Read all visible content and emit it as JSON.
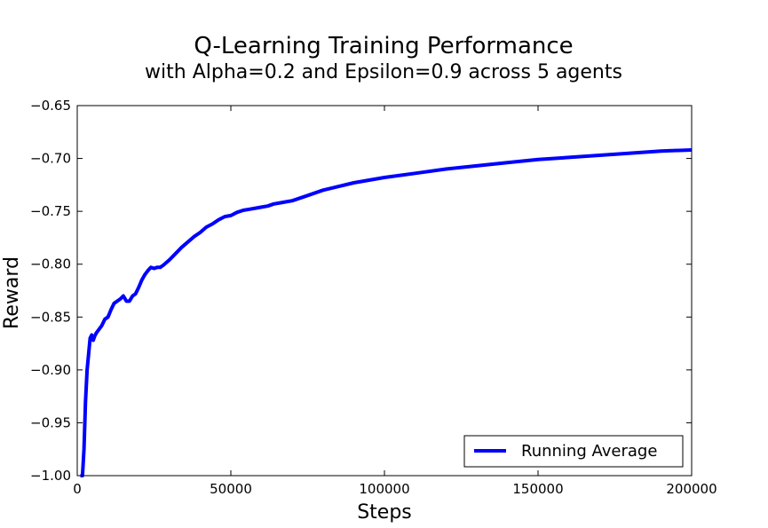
{
  "chart_data": {
    "type": "line",
    "title": "Q-Learning Training Performance",
    "subtitle": "with Alpha=0.2 and Epsilon=0.9 across 5 agents",
    "xlabel": "Steps",
    "ylabel": "Reward",
    "xlim": [
      0,
      200000
    ],
    "ylim": [
      -1.0,
      -0.65
    ],
    "x_ticks": [
      0,
      50000,
      100000,
      150000,
      200000
    ],
    "x_tick_labels": [
      "0",
      "50000",
      "100000",
      "150000",
      "200000"
    ],
    "y_ticks": [
      -1.0,
      -0.95,
      -0.9,
      -0.85,
      -0.8,
      -0.75,
      -0.7,
      -0.65
    ],
    "y_tick_labels": [
      "−1.00",
      "−0.95",
      "−0.90",
      "−0.85",
      "−0.80",
      "−0.75",
      "−0.70",
      "−0.65"
    ],
    "grid": false,
    "legend_position": "lower-right",
    "series": [
      {
        "name": "Running Average",
        "color": "#0000ff",
        "x": [
          1000,
          1700,
          2200,
          2700,
          3200,
          3700,
          4200,
          4700,
          5200,
          5700,
          6200,
          7000,
          8000,
          9000,
          10000,
          11000,
          12000,
          13000,
          14000,
          15000,
          16000,
          17000,
          18000,
          19000,
          20000,
          21000,
          22000,
          23000,
          24000,
          25000,
          26000,
          27000,
          28000,
          30000,
          32000,
          34000,
          36000,
          38000,
          40000,
          42000,
          44000,
          46000,
          48000,
          50000,
          52000,
          54000,
          56000,
          58000,
          60000,
          62000,
          64000,
          66000,
          68000,
          70000,
          75000,
          80000,
          90000,
          100000,
          110000,
          120000,
          130000,
          140000,
          150000,
          160000,
          170000,
          180000,
          190000,
          200000
        ],
        "values": [
          -1.0,
          -1.0,
          -0.975,
          -0.93,
          -0.9,
          -0.885,
          -0.87,
          -0.867,
          -0.872,
          -0.868,
          -0.865,
          -0.862,
          -0.858,
          -0.852,
          -0.85,
          -0.843,
          -0.837,
          -0.835,
          -0.833,
          -0.83,
          -0.835,
          -0.835,
          -0.83,
          -0.828,
          -0.822,
          -0.815,
          -0.81,
          -0.806,
          -0.803,
          -0.804,
          -0.803,
          -0.803,
          -0.801,
          -0.796,
          -0.79,
          -0.784,
          -0.779,
          -0.774,
          -0.77,
          -0.765,
          -0.762,
          -0.758,
          -0.755,
          -0.754,
          -0.751,
          -0.749,
          -0.748,
          -0.747,
          -0.746,
          -0.745,
          -0.743,
          -0.742,
          -0.741,
          -0.74,
          -0.735,
          -0.73,
          -0.723,
          -0.718,
          -0.714,
          -0.71,
          -0.707,
          -0.704,
          -0.701,
          -0.699,
          -0.697,
          -0.695,
          -0.693,
          -0.692
        ]
      }
    ]
  }
}
